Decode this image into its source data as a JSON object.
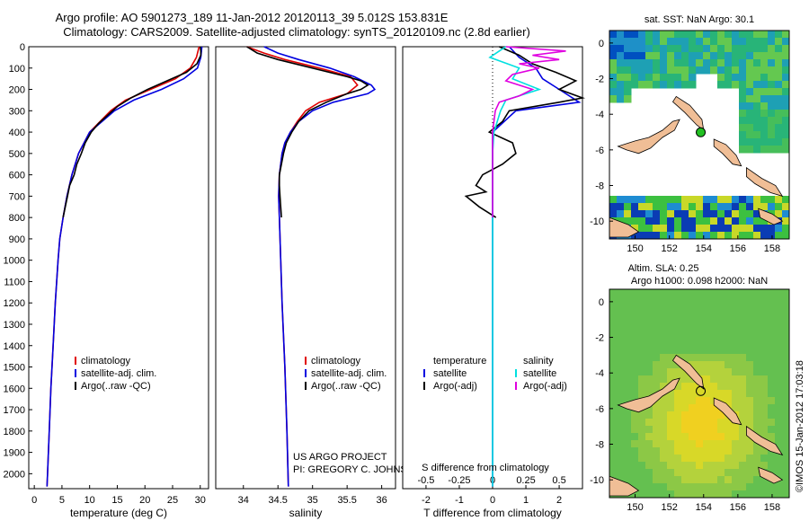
{
  "header": {
    "line1": "Argo profile: AO 5901273_189 11-Jan-2012 20120113_39 5.012S 153.831E",
    "line2": "Climatology: CARS2009. Satellite-adjusted climatology: synTS_20120109.nc (2.8d earlier)"
  },
  "colors": {
    "climatology": "#e00000",
    "satellite": "#0000e0",
    "argo": "#000000",
    "sal_satellite": "#00e0e0",
    "sal_argo": "#e000e0"
  },
  "chart_data": [
    {
      "type": "line",
      "id": "temperature",
      "xlabel": "temperature (deg C)",
      "ylabel": "",
      "xlim": [
        -1,
        31.5
      ],
      "ylim": [
        2070,
        0
      ],
      "xticks": [
        "0",
        "5",
        "10",
        "15",
        "20",
        "25",
        "30"
      ],
      "xtick_values": [
        0,
        5,
        10,
        15,
        20,
        25,
        30
      ],
      "yticks": [
        "0",
        "100",
        "200",
        "300",
        "400",
        "500",
        "600",
        "700",
        "800",
        "900",
        "1000",
        "1100",
        "1200",
        "1300",
        "1400",
        "1500",
        "1600",
        "1700",
        "1800",
        "1900",
        "2000"
      ],
      "ytick_values": [
        0,
        100,
        200,
        300,
        400,
        500,
        600,
        700,
        800,
        900,
        1000,
        1100,
        1200,
        1300,
        1400,
        1500,
        1600,
        1700,
        1800,
        1900,
        2000
      ],
      "legend": [
        "climatology",
        "satellite-adj. clim.",
        "Argo(..raw -QC)"
      ],
      "series": [
        {
          "name": "climatology",
          "depth": [
            0,
            50,
            100,
            150,
            200,
            250,
            300,
            400,
            500,
            600,
            700,
            800,
            900,
            1000,
            1200,
            1400,
            1600,
            1800,
            2000,
            2060
          ],
          "values": [
            29.8,
            29.3,
            28.2,
            25.5,
            21.0,
            16.5,
            13.8,
            10.0,
            8.0,
            6.8,
            5.9,
            5.2,
            4.6,
            4.3,
            3.8,
            3.4,
            3.0,
            2.7,
            2.4,
            2.3
          ]
        },
        {
          "name": "satellite-adj. clim.",
          "depth": [
            0,
            50,
            100,
            150,
            200,
            250,
            300,
            400,
            500,
            600,
            700,
            800,
            900,
            1000,
            1200,
            1400,
            1600,
            1800,
            2000,
            2060
          ],
          "values": [
            30.3,
            30.1,
            29.5,
            27.0,
            23.0,
            18.0,
            14.5,
            10.0,
            8.0,
            6.8,
            5.9,
            5.2,
            4.6,
            4.3,
            3.8,
            3.4,
            3.0,
            2.7,
            2.4,
            2.3
          ]
        },
        {
          "name": "Argo(..raw -QC)",
          "depth": [
            0,
            20,
            40,
            80,
            120,
            160,
            200,
            240,
            280,
            320,
            360,
            400,
            450,
            500,
            550,
            600,
            650,
            700,
            750,
            800
          ],
          "values": [
            30.0,
            30.1,
            30.1,
            29.4,
            27.5,
            24.0,
            20.5,
            17.5,
            15.0,
            13.3,
            11.6,
            10.3,
            9.2,
            8.5,
            7.7,
            7.2,
            6.4,
            6.0,
            5.6,
            5.2
          ]
        }
      ]
    },
    {
      "type": "line",
      "id": "salinity",
      "xlabel": "salinity",
      "xlim": [
        33.6,
        36.2
      ],
      "ylim": [
        2070,
        0
      ],
      "xticks": [
        "34",
        "34.5",
        "35",
        "35.5",
        "36"
      ],
      "xtick_values": [
        34,
        34.5,
        35,
        35.5,
        36
      ],
      "legend": [
        "climatology",
        "satellite-adj. clim.",
        "Argo(..raw -QC)"
      ],
      "annotation": [
        "US ARGO PROJECT",
        "PI: GREGORY C. JOHNSON"
      ],
      "series": [
        {
          "name": "climatology",
          "depth": [
            0,
            30,
            60,
            100,
            140,
            180,
            220,
            260,
            300,
            350,
            400,
            450,
            500,
            600,
            700,
            800,
            1000,
            1200,
            1500,
            1800,
            2060
          ],
          "values": [
            34.05,
            34.3,
            34.6,
            35.1,
            35.55,
            35.65,
            35.5,
            35.1,
            34.9,
            34.78,
            34.68,
            34.6,
            34.56,
            34.52,
            34.51,
            34.52,
            34.54,
            34.56,
            34.6,
            34.63,
            34.65
          ]
        },
        {
          "name": "satellite-adj. clim.",
          "depth": [
            0,
            30,
            60,
            100,
            140,
            180,
            200,
            220,
            260,
            300,
            350,
            400,
            450,
            500,
            600,
            700,
            800,
            1000,
            1200,
            1500,
            1800,
            2060
          ],
          "values": [
            34.3,
            34.5,
            34.8,
            35.25,
            35.6,
            35.85,
            35.9,
            35.8,
            35.3,
            35.0,
            34.8,
            34.68,
            34.6,
            34.56,
            34.52,
            34.51,
            34.52,
            34.54,
            34.56,
            34.6,
            34.63,
            34.65
          ]
        },
        {
          "name": "Argo(..raw -QC)",
          "depth": [
            0,
            30,
            60,
            100,
            140,
            160,
            180,
            200,
            220,
            260,
            300,
            350,
            400,
            450,
            500,
            550,
            600,
            650,
            700,
            750,
            800
          ],
          "values": [
            34.05,
            34.2,
            34.5,
            35.0,
            35.5,
            35.7,
            35.8,
            35.7,
            35.5,
            35.2,
            34.95,
            34.8,
            34.7,
            34.62,
            34.58,
            34.55,
            34.52,
            34.52,
            34.53,
            34.54,
            34.55
          ]
        }
      ]
    },
    {
      "type": "line",
      "id": "difference",
      "xlabel": "T difference from climatology",
      "xlabel_top": "S difference from climatology",
      "xlim": [
        -2.7,
        2.7
      ],
      "ylim": [
        2070,
        0
      ],
      "xticks": [
        "-2",
        "-1",
        "0",
        "1",
        "2"
      ],
      "xtick_values": [
        -2,
        -1,
        0,
        1,
        2
      ],
      "sticks": [
        "-0.5",
        "-0.25",
        "0",
        "0.25",
        "0.5"
      ],
      "stick_values": [
        -0.5,
        -0.25,
        0,
        0.25,
        0.5
      ],
      "legend_temperature": {
        "title": "temperature",
        "items": [
          "satellite",
          "Argo(-adj)"
        ]
      },
      "legend_salinity": {
        "title": "salinity",
        "items": [
          "satellite",
          "Argo(-adj)"
        ]
      },
      "series": [
        {
          "name": "temperature satellite",
          "depth": [
            0,
            50,
            100,
            150,
            200,
            260,
            300,
            400,
            500,
            600,
            700,
            800,
            900,
            1000,
            1200,
            1400,
            1600,
            1800,
            2000,
            2060
          ],
          "values": [
            0.5,
            0.8,
            1.3,
            1.5,
            2.0,
            2.6,
            0.7,
            0,
            0,
            0,
            0,
            0,
            0,
            0,
            0,
            0,
            0,
            0,
            0,
            0
          ]
        },
        {
          "name": "temperature Argo(-adj)",
          "depth": [
            0,
            40,
            80,
            120,
            160,
            200,
            240,
            260,
            300,
            350,
            400,
            450,
            500,
            550,
            600,
            650,
            680,
            700,
            750,
            800
          ],
          "values": [
            0.2,
            0.8,
            1.2,
            1.9,
            2.5,
            2.0,
            2.7,
            2.0,
            0.5,
            0.3,
            -0.1,
            0.6,
            0.7,
            0.3,
            -0.3,
            -0.5,
            -0.2,
            -0.8,
            -0.4,
            0.1
          ]
        },
        {
          "name": "salinity satellite",
          "depth": [
            0,
            20,
            50,
            100,
            150,
            200,
            250,
            300,
            400,
            500,
            600,
            800,
            1000,
            1500,
            2060
          ],
          "values": [
            0.1,
            0.05,
            -0.02,
            0.2,
            0.15,
            0.35,
            0.1,
            0.06,
            0.01,
            0.0,
            0.0,
            0.0,
            0.0,
            0.0,
            0.0
          ]
        },
        {
          "name": "salinity Argo(-adj)",
          "depth": [
            0,
            20,
            40,
            60,
            80,
            100,
            130,
            160,
            200,
            230,
            260,
            300,
            350,
            400,
            450,
            500,
            550,
            600,
            650,
            700,
            750,
            800
          ],
          "values": [
            0.1,
            0.55,
            0.3,
            0.5,
            0.2,
            0.35,
            0.15,
            0.1,
            0.3,
            0.2,
            0.05,
            0.02,
            0.01,
            0.0,
            0.0,
            0.0,
            0.0,
            0.0,
            0.0,
            0.0,
            0.0,
            0.0
          ]
        }
      ]
    },
    {
      "type": "heatmap",
      "id": "sst_map",
      "title": "sat. SST: NaN Argo: 30.1",
      "xlim": [
        148.5,
        159
      ],
      "ylim": [
        -11,
        0.7
      ],
      "xticks": [
        "150",
        "152",
        "154",
        "156",
        "158"
      ],
      "xtick_values": [
        150,
        152,
        154,
        156,
        158
      ],
      "yticks": [
        "0",
        "-2",
        "-4",
        "-6",
        "-8",
        "-10"
      ],
      "ytick_values": [
        0,
        -2,
        -4,
        -6,
        -8,
        -10
      ],
      "float_position": {
        "lon": 153.831,
        "lat": -5.012
      }
    },
    {
      "type": "heatmap",
      "id": "sla_map",
      "title": "Altim. SLA: 0.25",
      "subtitle": "Argo h1000: 0.098 h2000: NaN",
      "xlim": [
        148.5,
        159
      ],
      "ylim": [
        -11,
        0.7
      ],
      "xticks": [
        "150",
        "152",
        "154",
        "156",
        "158"
      ],
      "xtick_values": [
        150,
        152,
        154,
        156,
        158
      ],
      "yticks": [
        "0",
        "-2",
        "-4",
        "-6",
        "-8",
        "-10"
      ],
      "ytick_values": [
        0,
        -2,
        -4,
        -6,
        -8,
        -10
      ],
      "float_position": {
        "lon": 153.831,
        "lat": -5.012
      }
    }
  ],
  "footer": {
    "stamp": "©IMOS 15-Jan-2012 17:03:18"
  }
}
